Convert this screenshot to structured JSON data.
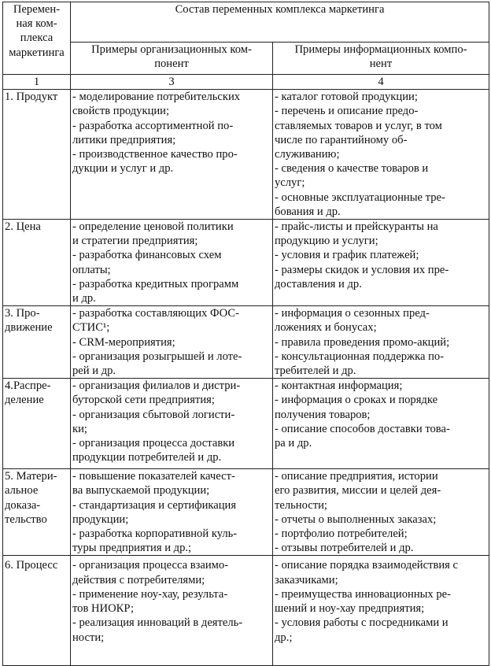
{
  "table": {
    "header": {
      "variable": "Перемен-\nная ком-\nплекса\nмаркетинга",
      "composition": "Состав переменных комплекса маркетинга",
      "organizational": "Примеры организационных ком-\nпонент",
      "informational": "Примеры информационных компо-\nнент"
    },
    "column_numbers": [
      "1",
      "3",
      "4"
    ],
    "rows": [
      {
        "variable": "1. Продукт",
        "organizational": "- моделирование потребительских\nсвойств продукции;\n- разработка ассортиментной по-\nлитики предприятия;\n- производственное качество про-\nдукции и услуг и др.",
        "informational": "- каталог готовой продукции;\n- перечень и описание предо-\nставляемых товаров и услуг, в том\nчисле по гарантийному об-\nслуживанию;\n- сведения о качестве товаров и\nуслуг;\n- основные эксплуатационные тре-\nбования и др."
      },
      {
        "variable": "2. Цена",
        "organizational": "- определение ценовой политики\nи стратегии предприятия;\n- разработка финансовых схем\nоплаты;\n- разработка кредитных программ\nи др.",
        "informational": "- прайс-листы и прейскуранты на\nпродукцию и услуги;\n- условия и график платежей;\n- размеры скидок и условия их пре-\nдоставления и др."
      },
      {
        "variable": "3. Про-\nдвижение",
        "organizational": "- разработка составляющих ФОС-\nСТИС¹;\n- CRM-мероприятия;\n- организация розыгрышей и лоте-\nрей и др.",
        "informational": "- информация о сезонных пред-\nложениях и бонусах;\n- правила проведения промо-акций;\n- консультационная поддержка по-\nтребителей и др."
      },
      {
        "variable": "4.Распре-\nделение",
        "organizational": "- организация филиалов и дистри-\nбуторской сети предприятия;\n- организация сбытовой логисти-\nки;\n- организация процесса доставки\nпродукции потребителей и др.",
        "informational": "- контактная информация;\n - информация о сроках и порядке\nполучения товаров;\n- описание способов доставки това-\nра и др."
      },
      {
        "variable": "5. Матери-\nальное\nдоказа-\nтельство",
        "organizational": "- повышение показателей качест-\nва выпускаемой продукции;\n- стандартизация и сертификация\nпродукции;\n- разработка корпоративной куль-\nтуры предприятия и др.;",
        "informational": "- описание предприятия, истории\nего развития, миссии и целей дея-\nтельности;\n- отчеты о выполненных заказах;\n- портфолио потребителей;\n- отзывы потребителей и др."
      },
      {
        "variable": "6. Процесс",
        "organizational": "- организация процесса взаимо-\nдействия с потребителями;\n- применение ноу-хау, результа-\nтов НИОКР;\n- реализация инноваций в деятель-\nности;",
        "informational": "- описание порядка взаимодействия с\nзаказчиками;\n- преимущества инновационных ре-\nшений и ноу-хау предприятия;\n- условия работы с посредниками и\nдр.;"
      }
    ]
  }
}
